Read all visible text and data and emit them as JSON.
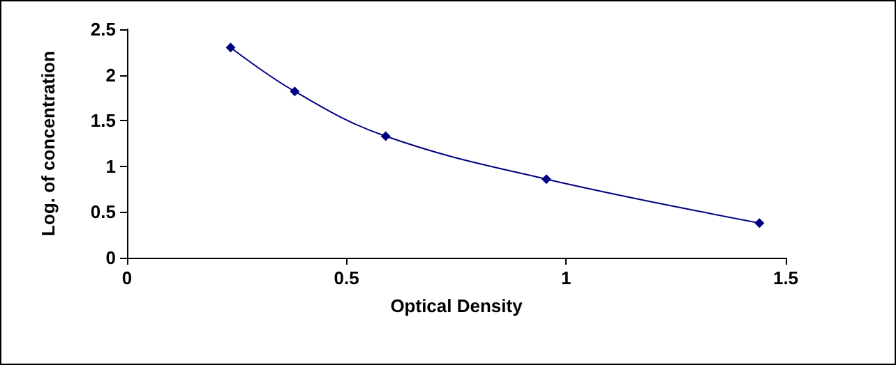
{
  "chart_data": {
    "type": "line",
    "xlabel": "Optical Density",
    "ylabel": "Log. of concentration",
    "x": [
      0.236,
      0.382,
      0.589,
      0.955,
      1.44
    ],
    "series": [
      {
        "color": "#000080",
        "values": [
          2.3,
          1.82,
          1.33,
          0.86,
          0.38
        ]
      }
    ],
    "xlim": [
      0,
      1.5
    ],
    "xticks": [
      0,
      0.5,
      1,
      1.5
    ],
    "ylim": [
      0,
      2.5
    ],
    "yticks": [
      0,
      0.5,
      1,
      1.5,
      2,
      2.5
    ],
    "grid": false,
    "marker": "diamond",
    "line_style": "solid"
  }
}
